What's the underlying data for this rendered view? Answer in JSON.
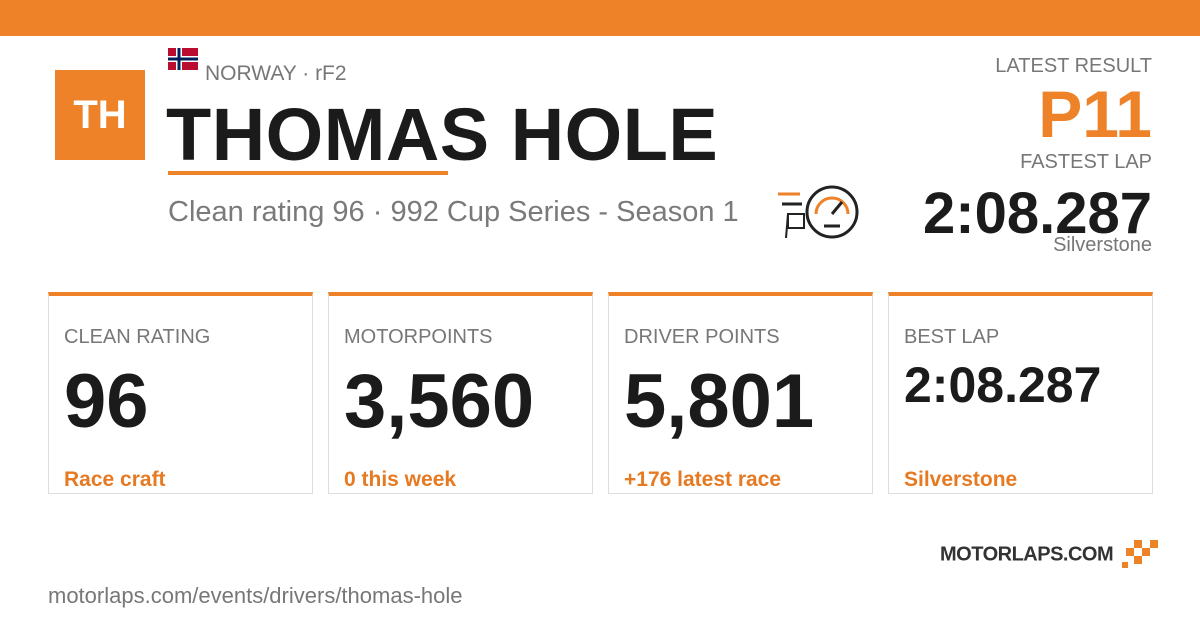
{
  "header": {
    "initials": "TH",
    "country": "NORWAY · rF2",
    "name": "THOMAS HOLE",
    "subtitle": "Clean rating 96 · 992 Cup Series - Season 1"
  },
  "latest": {
    "result_label": "LATEST RESULT",
    "result": "P11",
    "lap_label": "FASTEST LAP",
    "lap": "2:08.287",
    "track": "Silverstone"
  },
  "cards": [
    {
      "label": "CLEAN RATING",
      "value": "96",
      "note": "Race craft"
    },
    {
      "label": "MOTORPOINTS",
      "value": "3,560",
      "note": "0 this week"
    },
    {
      "label": "DRIVER POINTS",
      "value": "5,801",
      "note": "+176 latest race"
    },
    {
      "label": "BEST LAP",
      "value": "2:08.287",
      "note": "Silverstone"
    }
  ],
  "footer": {
    "url": "motorlaps.com/events/drivers/thomas-hole",
    "logo": "MOTORLAPS.COM"
  }
}
